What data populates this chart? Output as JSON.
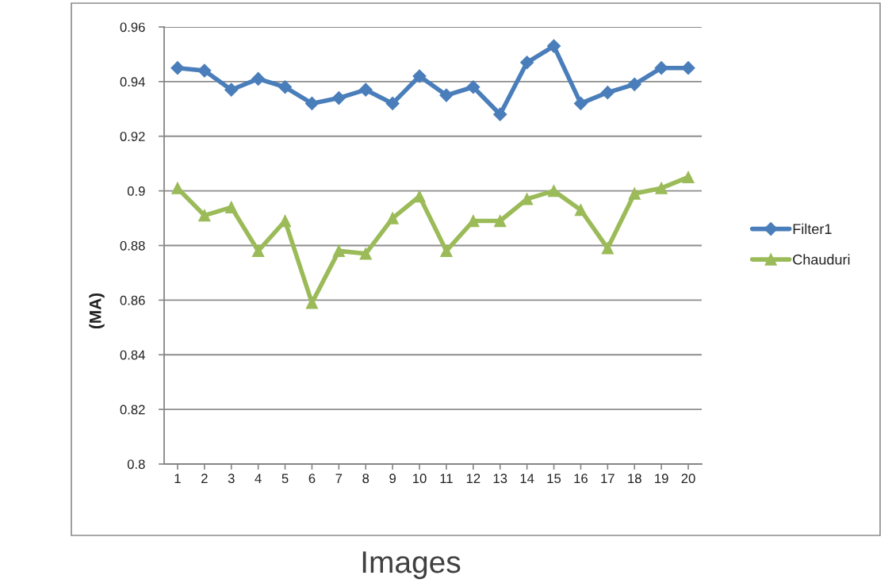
{
  "chart_data": {
    "type": "line",
    "xlabel": "Images",
    "ylabel": "(MA)",
    "categories": [
      "1",
      "2",
      "3",
      "4",
      "5",
      "6",
      "7",
      "8",
      "9",
      "10",
      "11",
      "12",
      "13",
      "14",
      "15",
      "16",
      "17",
      "18",
      "19",
      "20"
    ],
    "series": [
      {
        "name": "Filter1",
        "color": "#4a7ebb",
        "marker": "diamond",
        "values": [
          0.945,
          0.944,
          0.937,
          0.941,
          0.938,
          0.932,
          0.934,
          0.937,
          0.932,
          0.942,
          0.935,
          0.938,
          0.928,
          0.947,
          0.953,
          0.932,
          0.936,
          0.939,
          0.945,
          0.945
        ]
      },
      {
        "name": "Chauduri",
        "color": "#9bbb59",
        "marker": "triangle",
        "values": [
          0.901,
          0.891,
          0.894,
          0.878,
          0.889,
          0.859,
          0.878,
          0.877,
          0.89,
          0.898,
          0.878,
          0.889,
          0.889,
          0.897,
          0.9,
          0.893,
          0.879,
          0.899,
          0.901,
          0.905
        ]
      }
    ],
    "ylim": [
      0.8,
      0.96
    ],
    "yticks": [
      0.8,
      0.82,
      0.84,
      0.86,
      0.88,
      0.9,
      0.92,
      0.94,
      0.96
    ],
    "grid": "y",
    "legend": "right",
    "line_style": "solid"
  }
}
